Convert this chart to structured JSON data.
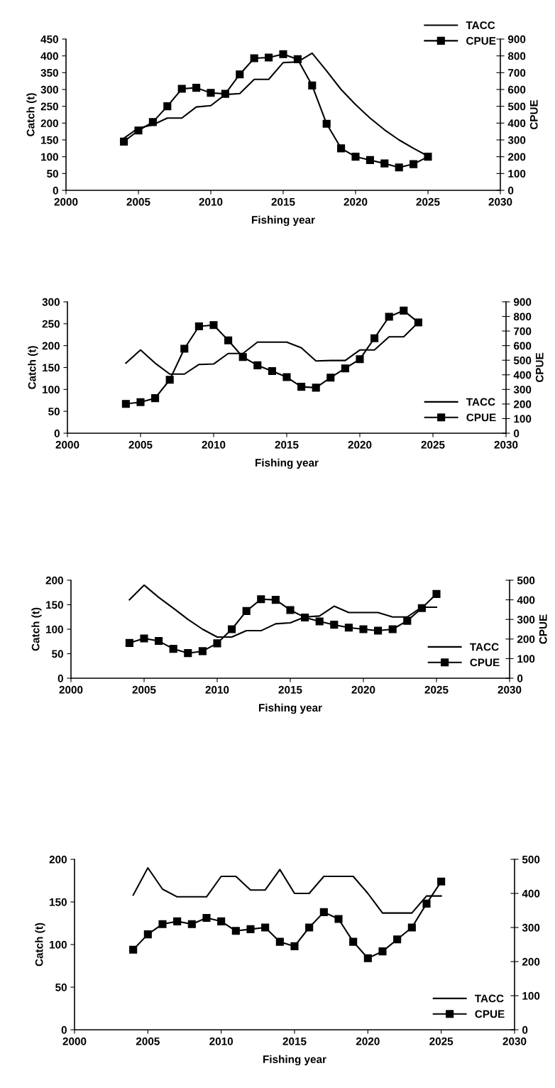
{
  "chart_data": [
    {
      "type": "line",
      "xlabel": "Fishing year",
      "ylabel": "Catch (t)",
      "y2label": "CPUE",
      "xlim": [
        2000,
        2030
      ],
      "xticks": [
        2000,
        2005,
        2010,
        2015,
        2020,
        2025,
        2030
      ],
      "ylim": [
        0,
        450
      ],
      "yticks": [
        0,
        50,
        100,
        150,
        200,
        250,
        300,
        350,
        400,
        450
      ],
      "y2lim": [
        0,
        900
      ],
      "y2ticks": [
        0,
        100,
        200,
        300,
        400,
        500,
        600,
        700,
        800,
        900
      ],
      "legend": "top right",
      "grid": false,
      "x": [
        2004,
        2005,
        2006,
        2007,
        2008,
        2009,
        2010,
        2011,
        2012,
        2013,
        2014,
        2015,
        2016,
        2017,
        2018,
        2019,
        2020,
        2021,
        2022,
        2023,
        2024,
        2025
      ],
      "series": [
        {
          "name": "TACC",
          "color": "#000000",
          "marker": "none",
          "values": [
            155,
            185,
            195,
            215,
            215,
            248,
            252,
            285,
            288,
            330,
            330,
            380,
            382,
            408,
            355,
            300,
            255,
            215,
            180,
            150,
            125,
            102
          ]
        },
        {
          "name": "CPUE",
          "color": "#000000",
          "marker": "square",
          "axis": "y2",
          "values": [
            290,
            356,
            406,
            500,
            604,
            610,
            580,
            574,
            690,
            786,
            790,
            810,
            780,
            624,
            396,
            250,
            200,
            180,
            160,
            136,
            156,
            200
          ]
        }
      ]
    },
    {
      "type": "line",
      "xlabel": "Fishing year",
      "ylabel": "Catch (t)",
      "y2label": "CPUE",
      "xlim": [
        2000,
        2030
      ],
      "xticks": [
        2000,
        2005,
        2010,
        2015,
        2020,
        2025,
        2030
      ],
      "ylim": [
        0,
        300
      ],
      "yticks": [
        0,
        50,
        100,
        150,
        200,
        250,
        300
      ],
      "y2lim": [
        0,
        900
      ],
      "y2ticks": [
        0,
        100,
        200,
        300,
        400,
        500,
        600,
        700,
        800,
        900
      ],
      "legend": "bottom right",
      "grid": false,
      "x": [
        2004,
        2005,
        2006,
        2007,
        2008,
        2009,
        2010,
        2011,
        2012,
        2013,
        2014,
        2015,
        2016,
        2017,
        2018,
        2019,
        2020,
        2021,
        2022,
        2023,
        2024
      ],
      "series": [
        {
          "name": "TACC",
          "color": "#000000",
          "marker": "none",
          "values": [
            160,
            190,
            160,
            135,
            135,
            157,
            158,
            182,
            182,
            208,
            208,
            208,
            195,
            165,
            166,
            166,
            190,
            190,
            220,
            220,
            253
          ]
        },
        {
          "name": "CPUE",
          "color": "#000000",
          "marker": "square",
          "axis": "y2",
          "values": [
            201,
            213,
            240,
            366,
            579,
            732,
            741,
            636,
            522,
            465,
            426,
            384,
            318,
            312,
            381,
            444,
            507,
            651,
            798,
            840,
            759
          ]
        }
      ]
    },
    {
      "type": "line",
      "xlabel": "Fishing year",
      "ylabel": "Catch (t)",
      "y2label": "CPUE",
      "xlim": [
        2000,
        2030
      ],
      "xticks": [
        2000,
        2005,
        2010,
        2015,
        2020,
        2025,
        2030
      ],
      "ylim": [
        0,
        200
      ],
      "yticks": [
        0,
        50,
        100,
        150,
        200
      ],
      "y2lim": [
        0,
        500
      ],
      "y2ticks": [
        0,
        100,
        200,
        300,
        400,
        500
      ],
      "legend": "bottom right",
      "grid": false,
      "x": [
        2004,
        2005,
        2006,
        2007,
        2008,
        2009,
        2010,
        2011,
        2012,
        2013,
        2014,
        2015,
        2016,
        2017,
        2018,
        2019,
        2020,
        2021,
        2022,
        2023,
        2024,
        2025
      ],
      "series": [
        {
          "name": "TACC",
          "color": "#000000",
          "marker": "none",
          "values": [
            160,
            190,
            165,
            143,
            120,
            100,
            84,
            84,
            97,
            97,
            111,
            113,
            125,
            127,
            147,
            134,
            134,
            134,
            125,
            125,
            145,
            145
          ]
        },
        {
          "name": "CPUE",
          "color": "#000000",
          "marker": "square",
          "axis": "y2",
          "values": [
            180,
            203,
            190,
            150,
            128,
            138,
            178,
            250,
            343,
            403,
            400,
            348,
            310,
            290,
            273,
            258,
            250,
            243,
            250,
            293,
            358,
            430
          ]
        }
      ]
    },
    {
      "type": "line",
      "xlabel": "Fishing year",
      "ylabel": "Catch (t)",
      "xlim": [
        2000,
        2030
      ],
      "xticks": [
        2000,
        2005,
        2010,
        2015,
        2020,
        2025,
        2030
      ],
      "ylim": [
        0,
        200
      ],
      "yticks": [
        0,
        50,
        100,
        150,
        200
      ],
      "y2lim": [
        0,
        500
      ],
      "y2ticks": [
        0,
        100,
        200,
        300,
        400,
        500
      ],
      "legend": "bottom right",
      "grid": false,
      "x": [
        2004,
        2005,
        2006,
        2007,
        2008,
        2009,
        2010,
        2011,
        2012,
        2013,
        2014,
        2015,
        2016,
        2017,
        2018,
        2019,
        2020,
        2021,
        2022,
        2023,
        2024,
        2025
      ],
      "series": [
        {
          "name": "TACC",
          "color": "#000000",
          "marker": "none",
          "values": [
            158,
            190,
            165,
            156,
            156,
            156,
            180,
            180,
            164,
            164,
            188,
            160,
            160,
            180,
            180,
            180,
            160,
            137,
            137,
            137,
            157,
            157
          ]
        },
        {
          "name": "CPUE",
          "color": "#000000",
          "marker": "square",
          "axis": "y2",
          "values": [
            235,
            280,
            310,
            318,
            310,
            328,
            318,
            290,
            295,
            300,
            258,
            245,
            300,
            345,
            325,
            258,
            210,
            230,
            265,
            300,
            370,
            435
          ]
        }
      ]
    }
  ]
}
